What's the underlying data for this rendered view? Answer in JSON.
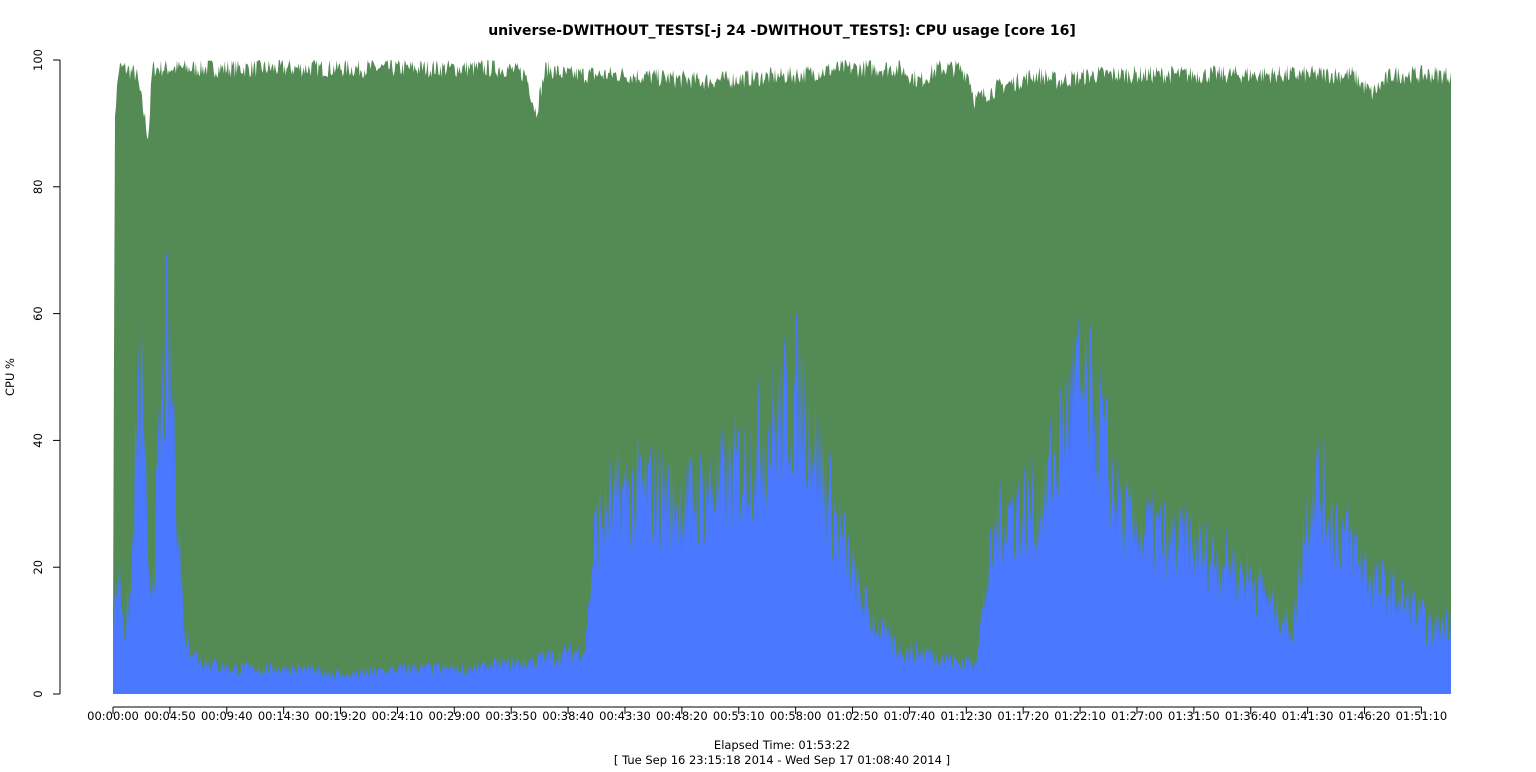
{
  "chart_data": {
    "type": "area",
    "title": "universe-DWITHOUT_TESTS[-j 24  -DWITHOUT_TESTS]: CPU usage [core 16]",
    "xlabel": "Elapsed Time: 01:53:22",
    "xsublabel": "[ Tue Sep 16 23:15:18 2014 - Wed Sep 17 01:08:40 2014 ]",
    "ylabel": "CPU %",
    "ylim": [
      0,
      100
    ],
    "yticks": [
      0,
      20,
      40,
      60,
      80,
      100
    ],
    "xlim_seconds": [
      0,
      6802
    ],
    "xticks": [
      "00:00:00",
      "00:04:50",
      "00:09:40",
      "00:14:30",
      "00:19:20",
      "00:24:10",
      "00:29:00",
      "00:33:50",
      "00:38:40",
      "00:43:30",
      "00:48:20",
      "00:53:10",
      "00:58:00",
      "01:02:50",
      "01:07:40",
      "01:12:30",
      "01:17:20",
      "01:22:10",
      "01:27:00",
      "01:31:50",
      "01:36:40",
      "01:41:30",
      "01:46:20",
      "01:51:10"
    ],
    "grid": false,
    "legend": "none",
    "series": [
      {
        "key": "sys",
        "color": "#4a78ff",
        "x": [
          0,
          30,
          60,
          90,
          120,
          150,
          180,
          210,
          240,
          270,
          300,
          330,
          360,
          420,
          480,
          600,
          900,
          1200,
          1500,
          1800,
          2100,
          2250,
          2400,
          2450,
          2520,
          2700,
          2900,
          3100,
          3300,
          3500,
          3600,
          3700,
          3800,
          3900,
          4000,
          4200,
          4300,
          4380,
          4500,
          4700,
          4800,
          4900,
          5000,
          5100,
          5200,
          5400,
          5600,
          5800,
          5900,
          5950,
          6000,
          6050,
          6100,
          6200,
          6400,
          6600,
          6700,
          6802
        ],
        "values": [
          12,
          20,
          10,
          15,
          40,
          50,
          15,
          22,
          40,
          55,
          45,
          30,
          10,
          6,
          5,
          4,
          4,
          3,
          4,
          4,
          5,
          6,
          7,
          25,
          30,
          32,
          30,
          33,
          40,
          48,
          35,
          25,
          15,
          10,
          7,
          6,
          5,
          5,
          28,
          30,
          38,
          48,
          45,
          30,
          26,
          24,
          22,
          18,
          14,
          12,
          10,
          25,
          35,
          28,
          18,
          14,
          10,
          12
        ]
      },
      {
        "key": "total",
        "color": "#548b54",
        "x": [
          0,
          10,
          30,
          60,
          120,
          150,
          180,
          200,
          300,
          600,
          1000,
          1500,
          2000,
          2100,
          2150,
          2200,
          2300,
          2600,
          3000,
          3500,
          3700,
          3800,
          4000,
          4100,
          4200,
          4300,
          4350,
          4380,
          4500,
          4700,
          4800,
          5000,
          5500,
          6000,
          6300,
          6400,
          6500,
          6802
        ],
        "values": [
          12,
          92,
          99,
          99,
          98,
          93,
          88,
          99,
          99,
          99,
          99,
          99,
          99,
          98,
          92,
          99,
          98,
          98,
          97,
          98,
          99,
          99,
          99,
          97,
          99,
          99,
          98,
          94,
          96,
          98,
          97,
          98,
          98,
          98,
          98,
          95,
          98,
          98
        ]
      }
    ]
  }
}
